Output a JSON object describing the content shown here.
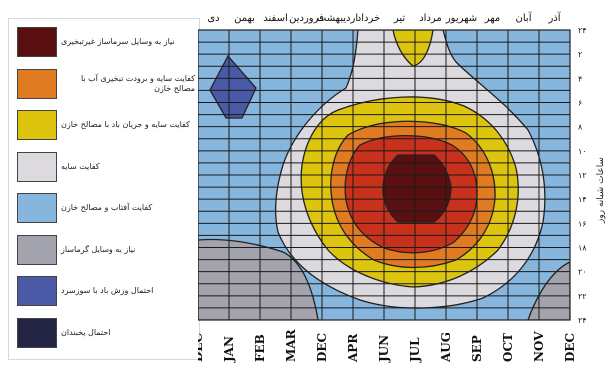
{
  "chart_data": {
    "type": "heatmap",
    "title": "",
    "xlabel": "",
    "ylabel": "ساعات شبانه روز",
    "x_top_labels": [
      "آذر",
      "آبان",
      "مهر",
      "شهریور",
      "مرداد",
      "تیر",
      "خرداد",
      "اردیبهشت",
      "فروردین",
      "اسفند",
      "بهمن",
      "دی"
    ],
    "x_bottom_labels": [
      "DEC",
      "JAN",
      "FEB",
      "MAR",
      "DEC",
      "APR",
      "JUN",
      "JUL",
      "AUG",
      "SEP",
      "OCT",
      "NOV",
      "DEC"
    ],
    "y_labels": [
      "۲۴",
      "۲",
      "۴",
      "۶",
      "۸",
      "۱۰",
      "۱۲",
      "۱۴",
      "۱۶",
      "۱۸",
      "۲۰",
      "۲۲",
      "۲۴"
    ],
    "legend": [
      {
        "label": "نیاز به وسایل سرماساز غیرتبخیری",
        "color": "#5a1010"
      },
      {
        "label": "کفایت سایه و برودت تبخیری آب با مصالح خازن",
        "color": "#e07b22"
      },
      {
        "label": "کفایت سایه و جریان باد با مصالح خازن",
        "color": "#ddc40f"
      },
      {
        "label": "کفایت سایه",
        "color": "#dcdade"
      },
      {
        "label": "کفایت آفتاب و مصالح خازن",
        "color": "#86b5de"
      },
      {
        "label": "نیاز به وسایل گرماساز",
        "color": "#a3a3ad"
      },
      {
        "label": "احتمال وزش باد با سوزسرد",
        "color": "#4b5aa7"
      },
      {
        "label": "احتمال یخبندان",
        "color": "#232344"
      }
    ]
  }
}
